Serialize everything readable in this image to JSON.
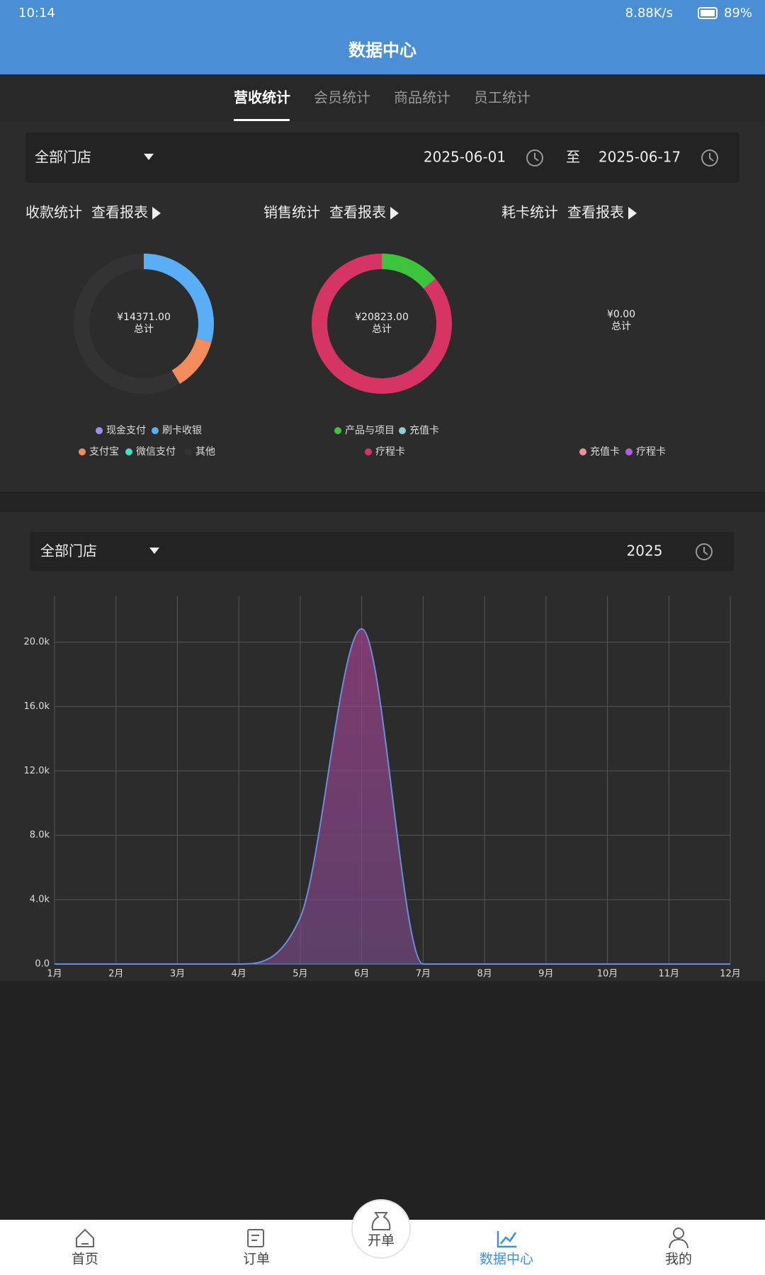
{
  "status_bar": {
    "time": "10:14",
    "speed": "8.88K/s",
    "battery": "89%"
  },
  "header": {
    "title": "数据中心"
  },
  "tabs": [
    "营收统计",
    "会员统计",
    "商品统计",
    "员工统计"
  ],
  "filter": {
    "store": "全部门店",
    "start": "2025-06-01",
    "separator": "至",
    "end": "2025-06-17"
  },
  "chart_data": [
    {
      "type": "donut",
      "title": "收款统计",
      "link": "查看报表",
      "total_label": "¥14371.00",
      "total_caption": "总计",
      "categories": [
        "现金支付",
        "刷卡收银",
        "支付宝",
        "微信支付",
        "其他"
      ],
      "values": [
        0,
        4200,
        1750,
        0,
        8421
      ],
      "colors": [
        "#9b8ff0",
        "#5aaef5",
        "#f28c5c",
        "#3ee0c0",
        "#333333"
      ]
    },
    {
      "type": "donut",
      "title": "销售统计",
      "link": "查看报表",
      "total_label": "¥20823.00",
      "total_caption": "总计",
      "categories": [
        "产品与项目",
        "充值卡",
        "疗程卡"
      ],
      "values": [
        2900,
        0,
        17923
      ],
      "colors": [
        "#3cc43c",
        "#8ecfd6",
        "#d63462"
      ]
    },
    {
      "type": "donut",
      "title": "耗卡统计",
      "link": "查看报表",
      "total_label": "¥0.00",
      "total_caption": "总计",
      "categories": [
        "充值卡",
        "疗程卡"
      ],
      "values": [
        0,
        0
      ],
      "colors": [
        "#f0909a",
        "#b05ee0"
      ]
    },
    {
      "type": "area",
      "categories": [
        "1月",
        "2月",
        "3月",
        "4月",
        "5月",
        "6月",
        "7月",
        "8月",
        "9月",
        "10月",
        "11月",
        "12月"
      ],
      "values": [
        0,
        0,
        0,
        0,
        2900,
        20823,
        0,
        0,
        0,
        0,
        0,
        0
      ],
      "ylim": [
        0,
        22880
      ],
      "yticks": [
        {
          "value": 0,
          "label": "0.0"
        },
        {
          "value": 4000,
          "label": "4.0k"
        },
        {
          "value": 8000,
          "label": "8.0k"
        },
        {
          "value": 12000,
          "label": "12.0k"
        },
        {
          "value": 16000,
          "label": "16.0k"
        },
        {
          "value": 20000,
          "label": "20.0k"
        }
      ],
      "grid": true,
      "color": "#6b8fd6",
      "fill": "#9b3f86"
    }
  ],
  "chart_filter": {
    "store": "全部门店",
    "year": "2025"
  },
  "nav": [
    "首页",
    "订单",
    "开单",
    "数据中心",
    "我的"
  ]
}
